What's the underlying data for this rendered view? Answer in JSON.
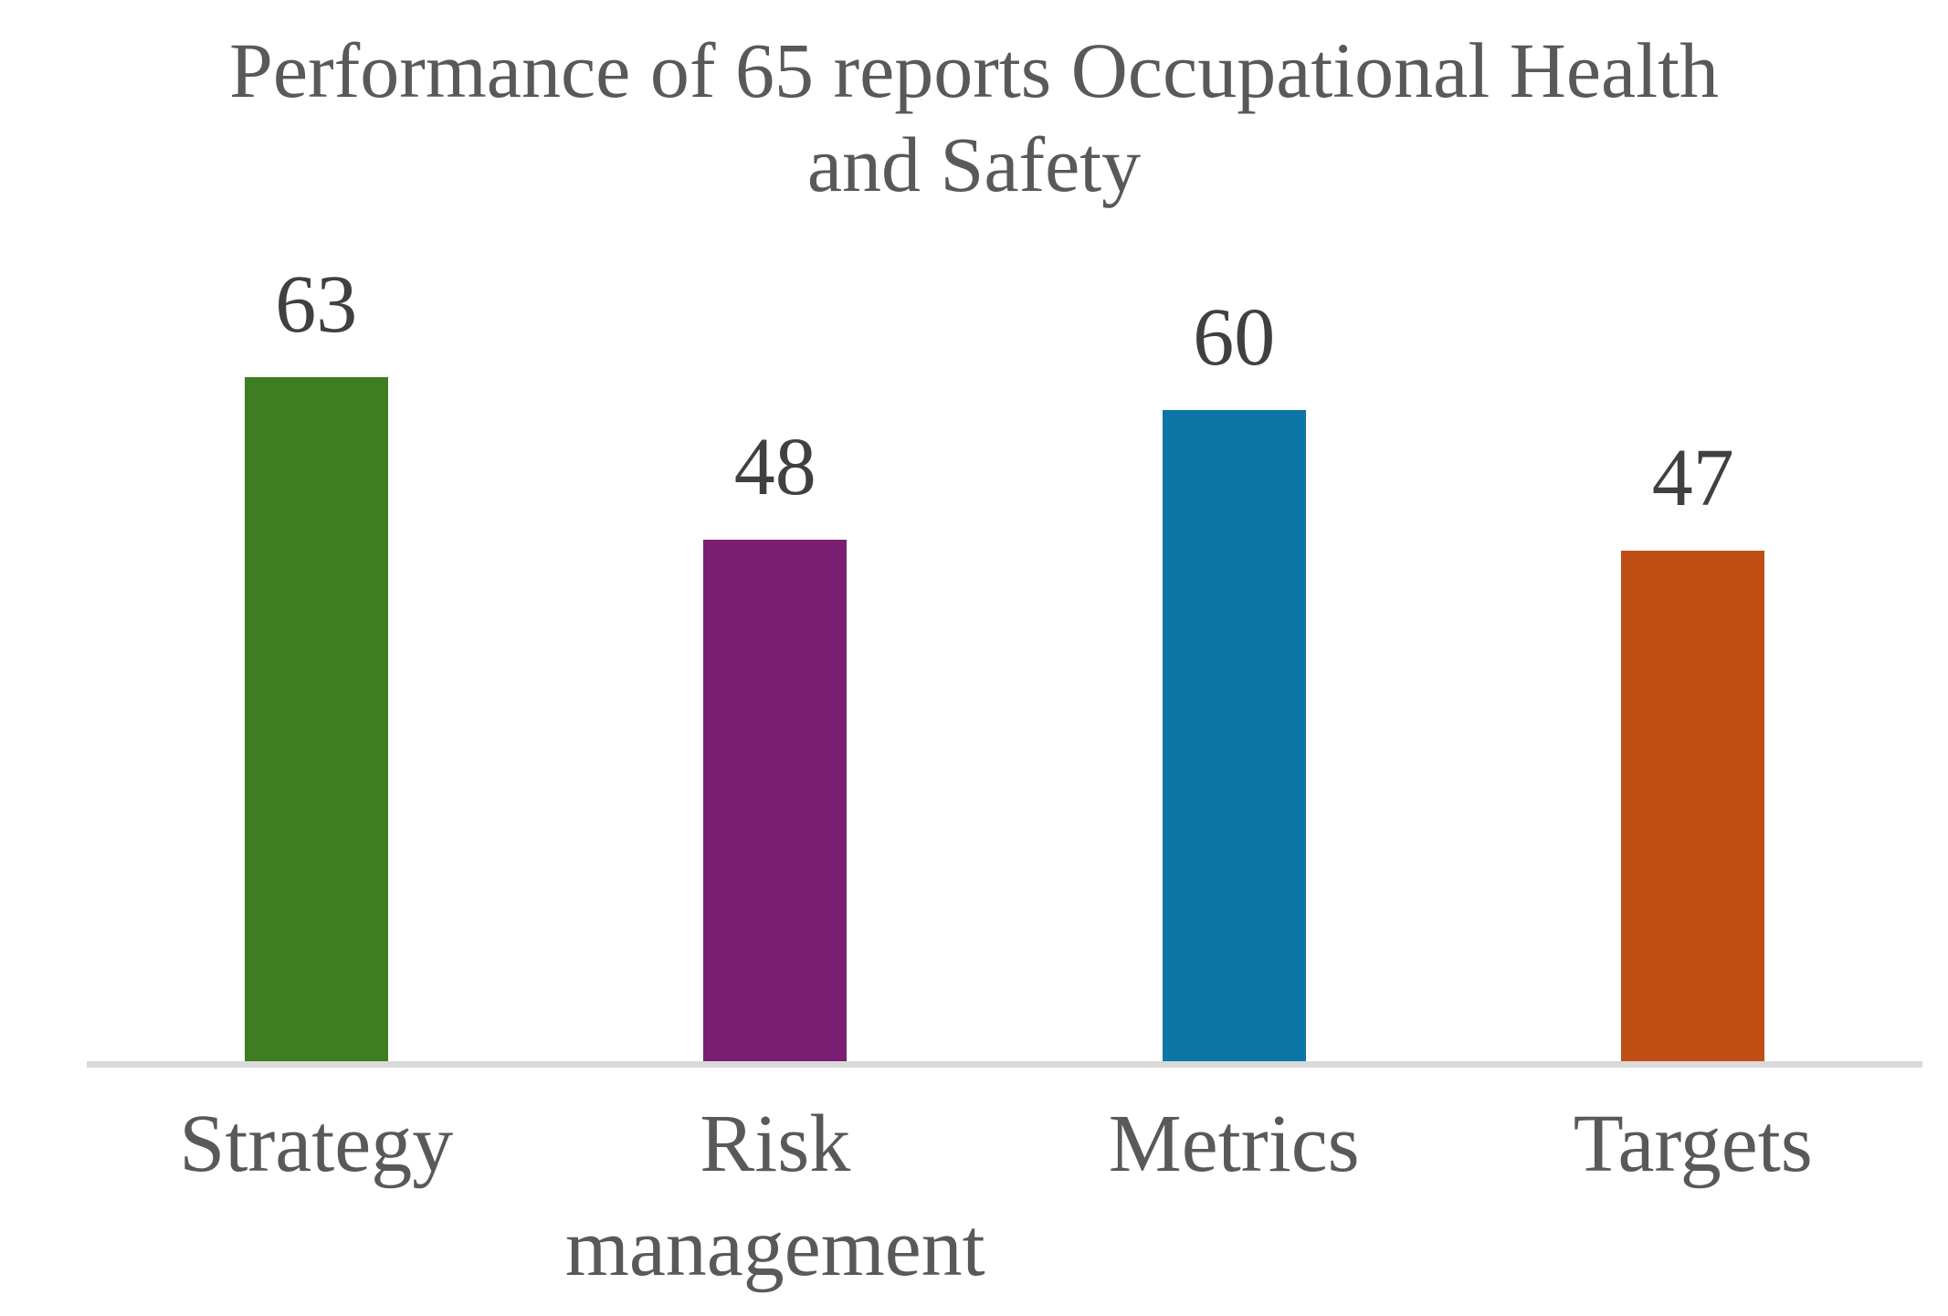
{
  "chart_data": {
    "type": "bar",
    "title": "Performance of 65 reports Occupational Health and Safety",
    "categories": [
      "Strategy",
      "Risk management",
      "Metrics",
      "Targets"
    ],
    "values": [
      63,
      48,
      60,
      47
    ],
    "data_labels": [
      "63",
      "48",
      "60",
      "47"
    ],
    "bar_colors": [
      "#3E7D22",
      "#7A1E71",
      "#0E76A6",
      "#C04F15"
    ],
    "xlabel": "",
    "ylabel": "",
    "value_axis_visible": false,
    "gridlines": false,
    "legend": "none",
    "baseline": 0
  },
  "colors": {
    "background": "#FFFFFF",
    "title_text": "#595959",
    "data_label_text": "#404040",
    "category_label_text": "#595959",
    "axis_line": "#D9D9D9"
  }
}
